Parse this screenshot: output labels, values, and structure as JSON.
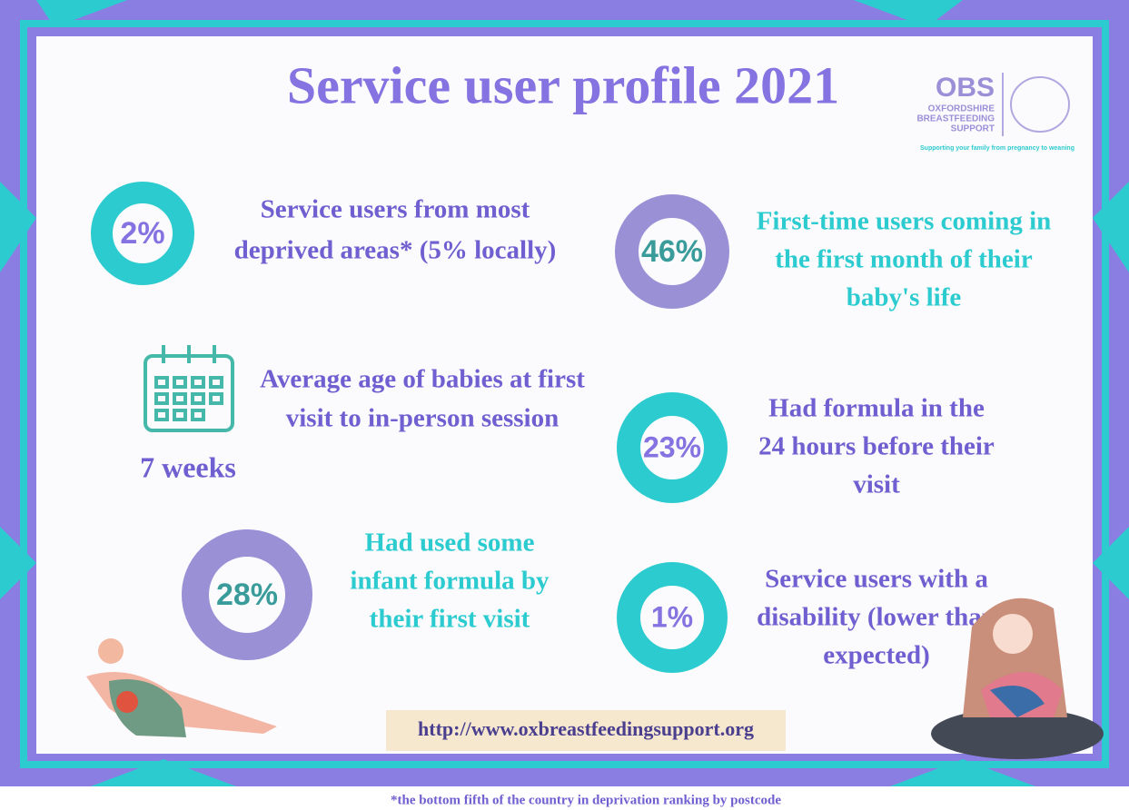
{
  "header": {
    "title": "Service user profile 2021"
  },
  "logo": {
    "abbr": "OBS",
    "lines": [
      "OXFORDSHIRE",
      "BREASTFEEDING",
      "SUPPORT"
    ],
    "tagline": "Supporting your family from pregnancy to weaning"
  },
  "stats": [
    {
      "figure": "2%",
      "lines": [
        "Service users from most",
        "deprived areas* (5% locally)"
      ]
    },
    {
      "figure": "46%",
      "lines": [
        "First-time users coming in",
        "the first month of their",
        "baby's life"
      ]
    },
    {
      "figure": "7 weeks",
      "lines": [
        "Average age of babies at first",
        "visit to in-person session"
      ]
    },
    {
      "figure": "23%",
      "lines": [
        "Had formula in the",
        "24 hours before their",
        "visit"
      ]
    },
    {
      "figure": "28%",
      "lines": [
        "Had used some",
        "infant formula by",
        "their first visit"
      ]
    },
    {
      "figure": "1%",
      "lines": [
        "Service users with a",
        "disability (lower than",
        "expected)"
      ]
    }
  ],
  "url": "http://www.oxbreastfeedingsupport.org",
  "footnote": "*the bottom fifth of the country in deprivation ranking by postcode"
}
